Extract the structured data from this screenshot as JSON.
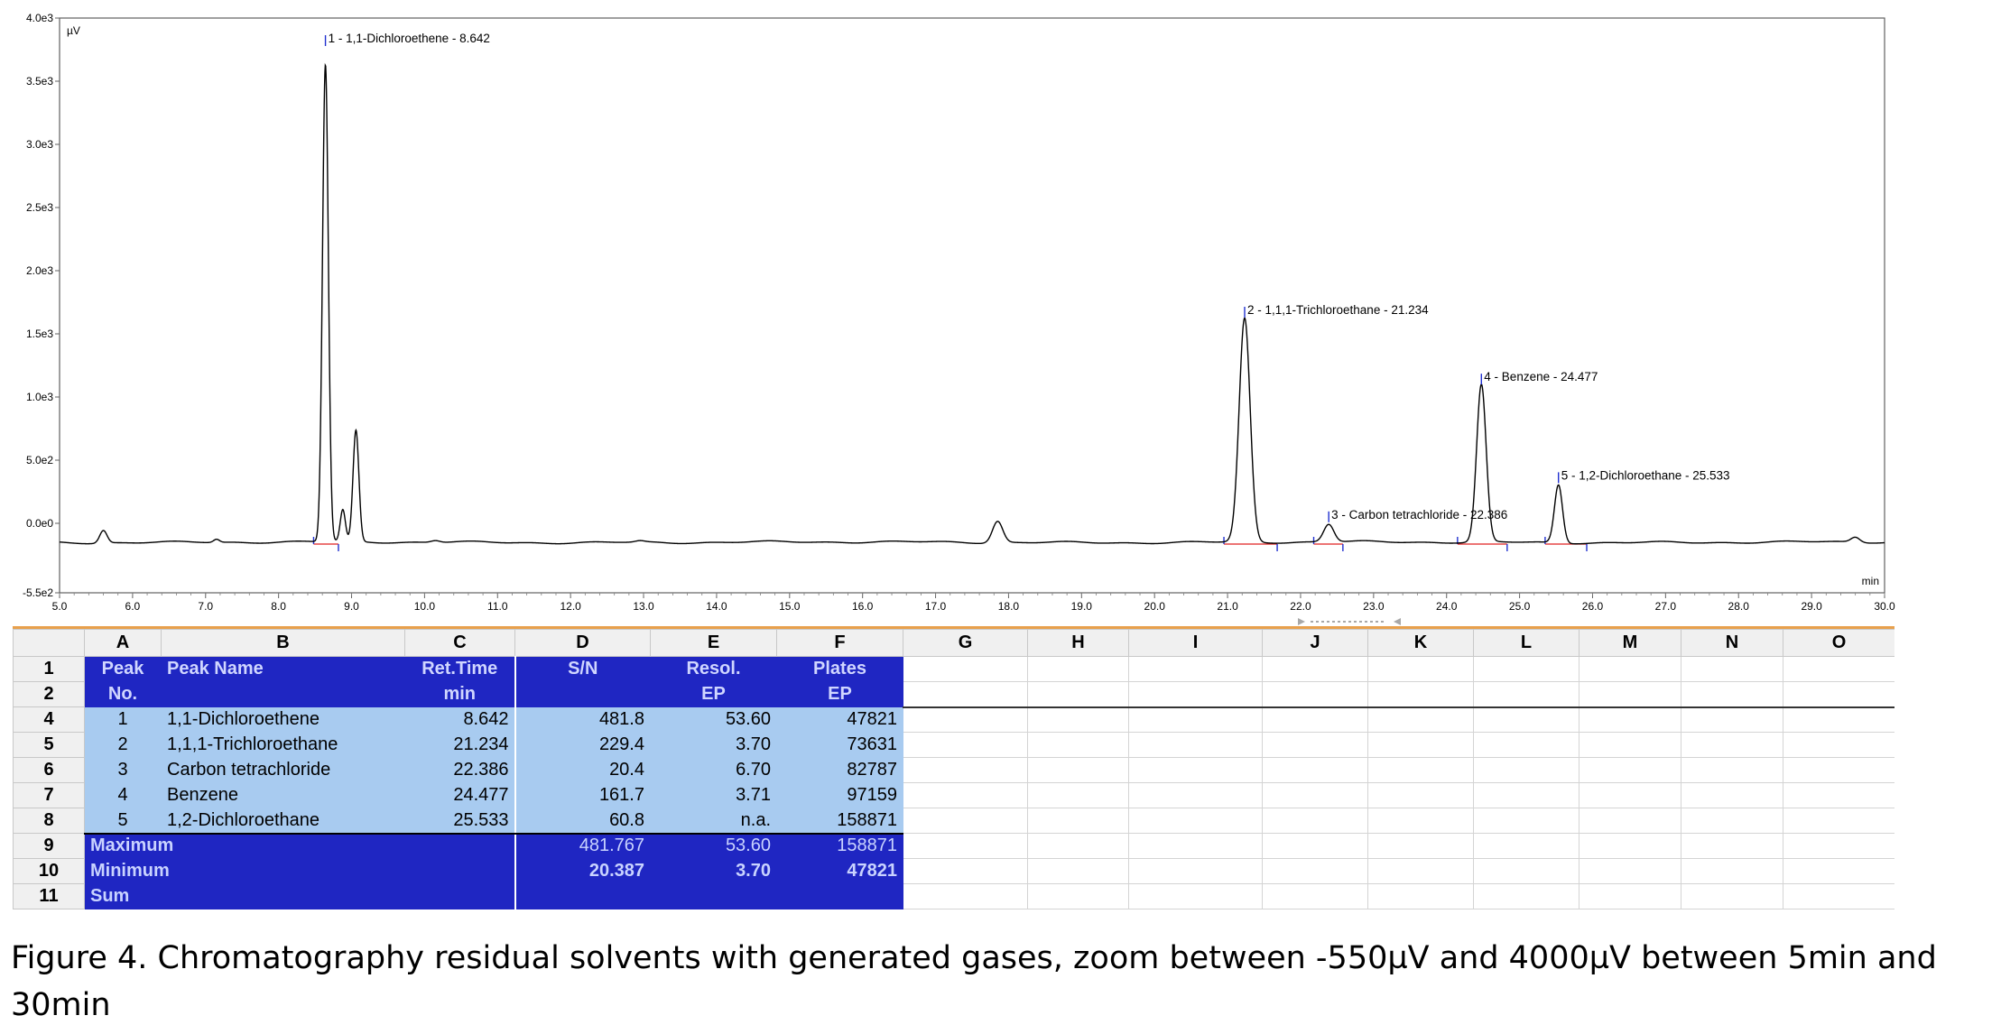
{
  "chart_data": {
    "type": "line",
    "ylabel": "µV",
    "xlabel": "min",
    "xlim": [
      5.0,
      30.0
    ],
    "ylim": [
      -550,
      4000
    ],
    "x_ticks": [
      "5.0",
      "6.0",
      "7.0",
      "8.0",
      "9.0",
      "10.0",
      "11.0",
      "12.0",
      "13.0",
      "14.0",
      "15.0",
      "16.0",
      "17.0",
      "18.0",
      "19.0",
      "20.0",
      "21.0",
      "22.0",
      "23.0",
      "24.0",
      "25.0",
      "26.0",
      "27.0",
      "28.0",
      "29.0",
      "30.0"
    ],
    "y_ticks": [
      {
        "value": 4000,
        "label": "4.0e3"
      },
      {
        "value": 3500,
        "label": "3.5e3"
      },
      {
        "value": 3000,
        "label": "3.0e3"
      },
      {
        "value": 2500,
        "label": "2.5e3"
      },
      {
        "value": 2000,
        "label": "2.0e3"
      },
      {
        "value": 1500,
        "label": "1.5e3"
      },
      {
        "value": 1000,
        "label": "1.0e3"
      },
      {
        "value": 500,
        "label": "5.0e2"
      },
      {
        "value": 0,
        "label": "0.0e0"
      },
      {
        "value": -550,
        "label": "-5.5e2"
      }
    ],
    "baseline": -150,
    "peaks": [
      {
        "rt": 5.6,
        "height": 100,
        "width": 0.05
      },
      {
        "rt": 7.15,
        "height": 25,
        "width": 0.04
      },
      {
        "rt": 8.642,
        "height": 3775,
        "width": 0.04
      },
      {
        "rt": 8.88,
        "height": 250,
        "width": 0.035
      },
      {
        "rt": 9.06,
        "height": 880,
        "width": 0.04
      },
      {
        "rt": 10.15,
        "height": 15,
        "width": 0.06
      },
      {
        "rt": 12.95,
        "height": 10,
        "width": 0.06
      },
      {
        "rt": 17.85,
        "height": 170,
        "width": 0.07
      },
      {
        "rt": 21.234,
        "height": 1770,
        "width": 0.075
      },
      {
        "rt": 22.386,
        "height": 140,
        "width": 0.07
      },
      {
        "rt": 24.477,
        "height": 1245,
        "width": 0.065
      },
      {
        "rt": 25.533,
        "height": 460,
        "width": 0.055
      },
      {
        "rt": 29.6,
        "height": 40,
        "width": 0.06
      }
    ],
    "annotations": [
      {
        "text": "1 - 1,1-Dichloroethene - 8.642",
        "x": 8.642,
        "y": 3800
      },
      {
        "text": "2 - 1,1,1-Trichloroethane - 21.234",
        "x": 21.234,
        "y": 1650
      },
      {
        "text": "3 - Carbon tetrachloride - 22.386",
        "x": 22.386,
        "y": 30
      },
      {
        "text": "4 - Benzene - 24.477",
        "x": 24.477,
        "y": 1120
      },
      {
        "text": "5 - 1,2-Dichloroethane - 25.533",
        "x": 25.533,
        "y": 340
      }
    ],
    "integration_baselines": [
      {
        "from": 8.48,
        "to": 8.82
      },
      {
        "from": 20.95,
        "to": 21.68
      },
      {
        "from": 22.18,
        "to": 22.58
      },
      {
        "from": 24.15,
        "to": 24.83
      },
      {
        "from": 25.35,
        "to": 25.92
      }
    ]
  },
  "sheet": {
    "col_headers": [
      "A",
      "B",
      "C",
      "D",
      "E",
      "F",
      "G",
      "H",
      "I",
      "J",
      "K",
      "L",
      "M",
      "N",
      "O"
    ],
    "header_row1": {
      "row": "1",
      "a": "Peak",
      "b": "Peak Name",
      "c": "Ret.Time",
      "d": "S/N",
      "e": "Resol.",
      "f": "Plates"
    },
    "header_row2": {
      "row": "2",
      "a": "No.",
      "b": "",
      "c": "min",
      "d": "",
      "e": "EP",
      "f": "EP"
    },
    "rows": [
      {
        "row": "4",
        "no": "1",
        "name": "1,1-Dichloroethene",
        "rt": "8.642",
        "sn": "481.8",
        "resol": "53.60",
        "plates": "47821"
      },
      {
        "row": "5",
        "no": "2",
        "name": "1,1,1-Trichloroethane",
        "rt": "21.234",
        "sn": "229.4",
        "resol": "3.70",
        "plates": "73631"
      },
      {
        "row": "6",
        "no": "3",
        "name": "Carbon tetrachloride",
        "rt": "22.386",
        "sn": "20.4",
        "resol": "6.70",
        "plates": "82787"
      },
      {
        "row": "7",
        "no": "4",
        "name": "Benzene",
        "rt": "24.477",
        "sn": "161.7",
        "resol": "3.71",
        "plates": "97159"
      },
      {
        "row": "8",
        "no": "5",
        "name": "1,2-Dichloroethane",
        "rt": "25.533",
        "sn": "60.8",
        "resol": "n.a.",
        "plates": "158871"
      }
    ],
    "summary": [
      {
        "row": "9",
        "label": "Maximum",
        "sn": "481.767",
        "resol": "53.60",
        "plates": "158871"
      },
      {
        "row": "10",
        "label": "Minimum",
        "sn": "20.387",
        "resol": "3.70",
        "plates": "47821"
      },
      {
        "row": "11",
        "label": "Sum",
        "sn": "",
        "resol": "",
        "plates": ""
      }
    ]
  },
  "caption": "Figure 4. Chromatography residual solvents with generated gases, zoom between -550µV and 4000µV between 5min and 30min"
}
